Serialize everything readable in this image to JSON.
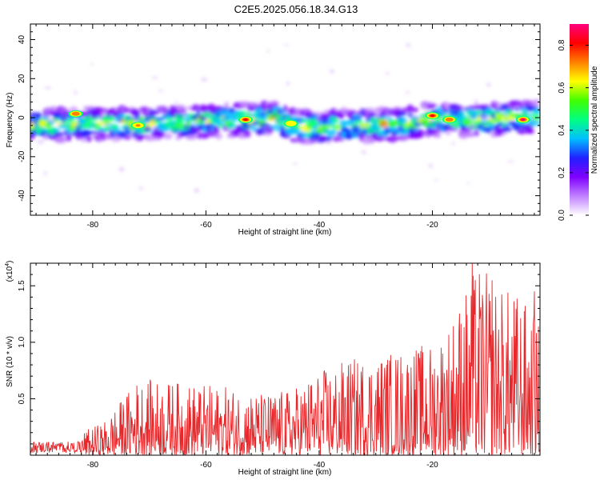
{
  "title": "C2E5.2025.056.18.34.G13",
  "spectrogram": {
    "xlabel": "Height of straight line (km)",
    "ylabel": "Frequency (Hz)",
    "xlim": [
      -91,
      -1
    ],
    "ylim": [
      -50,
      48
    ],
    "xticks": [
      -80,
      -60,
      -40,
      -20
    ],
    "yticks": [
      -40,
      -20,
      0,
      20,
      40
    ],
    "colorbar": {
      "label": "Normalized spectral amplitude",
      "range": [
        0,
        0.9
      ],
      "ticks": [
        0.0,
        0.2,
        0.4,
        0.6,
        0.8
      ],
      "colors": [
        "#ffffff",
        "#c080ff",
        "#8000ff",
        "#2020ff",
        "#00c0ff",
        "#00ff80",
        "#40ff00",
        "#ffff00",
        "#ff8000",
        "#ff0000",
        "#ff0080"
      ]
    }
  },
  "chart_data": [
    {
      "type": "heatmap",
      "title": "C2E5.2025.056.18.34.G13",
      "xlabel": "Height of straight line (km)",
      "ylabel": "Frequency (Hz)",
      "xlim": [
        -91,
        -1
      ],
      "ylim": [
        -50,
        48
      ],
      "value_range": [
        0,
        0.9
      ],
      "band_center": {
        "x": [
          -91,
          -80,
          -70,
          -60,
          -52,
          -48,
          -44,
          -40,
          -35,
          -30,
          -25,
          -20,
          -15,
          -10,
          -5,
          -1
        ],
        "y": [
          -4,
          -3,
          -3,
          -2,
          -1,
          0,
          -4,
          -5,
          -4,
          -4,
          -3,
          -1,
          -1,
          -1,
          0,
          0
        ]
      },
      "hotspots": [
        {
          "x": -83,
          "y": 2,
          "value": 0.75
        },
        {
          "x": -72,
          "y": -4,
          "value": 0.7
        },
        {
          "x": -53,
          "y": -1,
          "value": 0.8
        },
        {
          "x": -45,
          "y": -3,
          "value": 0.6
        },
        {
          "x": -20,
          "y": 1,
          "value": 0.8
        },
        {
          "x": -17,
          "y": -1,
          "value": 0.75
        },
        {
          "x": -4,
          "y": -1,
          "value": 0.9
        }
      ]
    },
    {
      "type": "line",
      "xlabel": "Height of straight line (km)",
      "ylabel": "SNR (10 * v/v)",
      "y_multiplier": "(x10^4)",
      "xlim": [
        -91,
        -1
      ],
      "ylim": [
        0,
        1.7
      ],
      "xticks": [
        -80,
        -60,
        -40,
        -20
      ],
      "yticks": [
        0.5,
        1.0,
        1.5
      ],
      "color": "#e8272a",
      "envelope": {
        "x": [
          -91,
          -85,
          -82,
          -78,
          -74,
          -72,
          -65,
          -55,
          -50,
          -45,
          -40,
          -35,
          -30,
          -25,
          -20,
          -17,
          -14,
          -12,
          -8,
          -5,
          -2,
          -1
        ],
        "y": [
          0.12,
          0.1,
          0.2,
          0.3,
          0.55,
          0.68,
          0.65,
          0.6,
          0.55,
          0.58,
          0.75,
          0.85,
          0.9,
          0.95,
          1.0,
          1.2,
          1.5,
          1.7,
          1.5,
          1.45,
          1.25,
          1.15
        ]
      },
      "peaks": [
        {
          "x": -13,
          "y": 1.72
        },
        {
          "x": -9.5,
          "y": 1.55
        },
        {
          "x": -2,
          "y": 1.45
        }
      ]
    }
  ],
  "snr": {
    "xlabel": "Height of straight line (km)",
    "ylabel": "SNR (10 * v/v)",
    "multiplier_base": "(x10",
    "multiplier_exp": "4",
    "multiplier_close": ")"
  }
}
